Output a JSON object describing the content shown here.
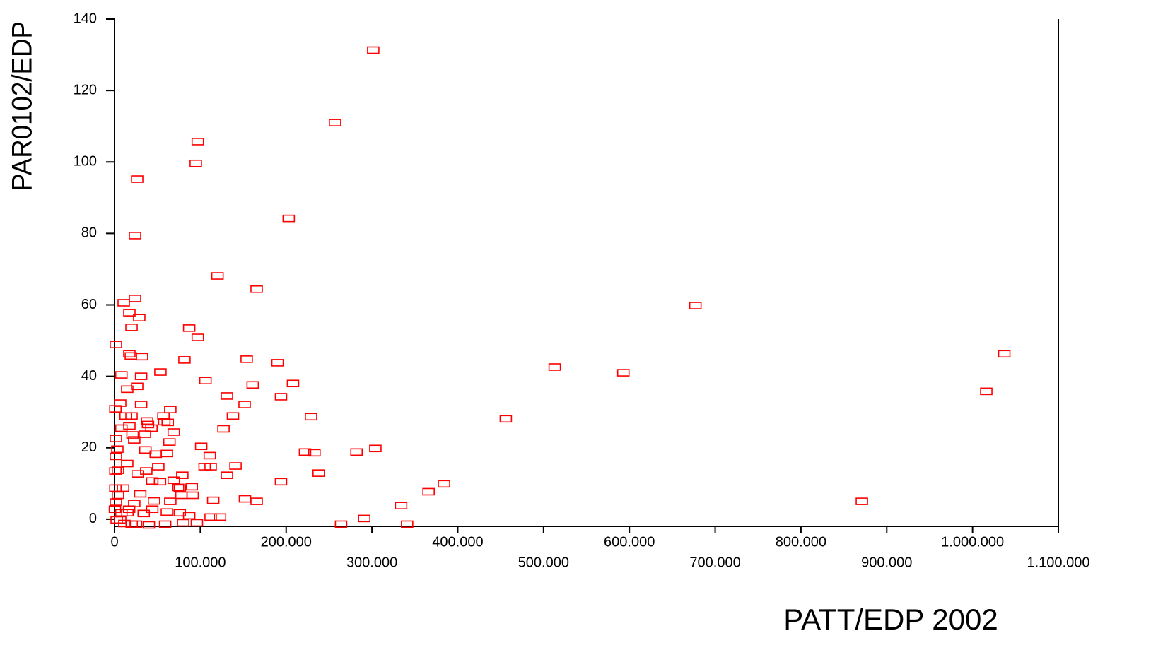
{
  "chart_data": {
    "type": "scatter",
    "x_label": "PATT/EDP 2002",
    "y_label": "PAR0102/EDP",
    "xlim": [
      0,
      1100000
    ],
    "ylim": [
      -2,
      140
    ],
    "xticks": [
      0,
      {
        "value": 100000,
        "label": "100.000"
      },
      {
        "value": 200000,
        "label": "200.000"
      },
      {
        "value": 300000,
        "label": "300.000"
      },
      {
        "value": 400000,
        "label": "400.000"
      },
      {
        "value": 500000,
        "label": "500.000"
      },
      {
        "value": 600000,
        "label": "600.000"
      },
      {
        "value": 700000,
        "label": "700.000"
      },
      {
        "value": 800000,
        "label": "800.000"
      },
      {
        "value": 900000,
        "label": "900.000"
      },
      {
        "value": 1000000,
        "label": "1.000.000"
      },
      {
        "value": 1100000,
        "label": "1.100.000"
      }
    ],
    "yticks": [
      0,
      20,
      40,
      60,
      80,
      100,
      120,
      140
    ],
    "series": [
      {
        "color": "#ff0000",
        "x": [
          301500,
          257000,
          97000,
          94700,
          26400,
          23900,
          203000,
          120000,
          165600,
          677000,
          1037000,
          1016000,
          513000,
          593000,
          456000,
          871000,
          384000,
          366000,
          334000,
          291000,
          264000,
          341000,
          304000,
          282000,
          238000,
          233000,
          222000,
          229000,
          208000,
          194000,
          190000,
          194000,
          161000,
          154000,
          151600,
          165600,
          152000,
          127000,
          138000,
          131000,
          141000,
          131000,
          106000,
          97000,
          87000,
          81500,
          101000,
          111000,
          112000,
          105000,
          115000,
          112000,
          123000,
          96000,
          80000,
          90000,
          87000,
          53500,
          65000,
          58000,
          69000,
          61000,
          53000,
          74000,
          65000,
          59000,
          40000,
          20000,
          1600,
          10700,
          23900,
          17300,
          28800,
          19800,
          17300,
          32000,
          19000,
          31000,
          14800,
          26400,
          31000,
          6600,
          1000,
          17300,
          35400,
          23000,
          36000,
          3300,
          14800,
          4000,
          27000,
          10000,
          4000,
          23000,
          15000,
          2500,
          38000,
          48000,
          44000,
          46000,
          34000,
          25000,
          8000,
          1600,
          1000,
          1000,
          1600,
          1600,
          8000,
          13000,
          8000,
          19800,
          39000,
          51000,
          69000,
          78000,
          91000,
          79000,
          76000,
          61000,
          76000,
          44000,
          30000,
          37000,
          21000,
          43000,
          57000,
          62000,
          64000,
          6600,
          11500,
          17000,
          500
        ],
        "y": [
          131.3,
          111,
          105.7,
          99.6,
          95.2,
          79.4,
          84.2,
          68.1,
          64.4,
          59.8,
          46.3,
          35.8,
          42.6,
          41,
          28.1,
          5,
          9.9,
          7.7,
          3.8,
          0.2,
          -1.4,
          -1.4,
          19.8,
          18.8,
          12.9,
          18.6,
          18.8,
          28.7,
          38,
          34.3,
          43.8,
          10.5,
          37.6,
          44.8,
          32.1,
          5,
          5.7,
          25.3,
          28.9,
          34.5,
          14.9,
          12.3,
          38.8,
          50.9,
          53.5,
          44.6,
          20.4,
          17.8,
          14.7,
          14.7,
          5.3,
          0.6,
          0.6,
          -1,
          -1,
          9.1,
          1,
          41.2,
          30.7,
          27.3,
          24.4,
          18.4,
          10.5,
          8.9,
          5,
          -1.4,
          -1.6,
          -1.4,
          48.9,
          60.6,
          61.8,
          57.8,
          56.4,
          53.7,
          46.3,
          45.5,
          45.7,
          40,
          36.4,
          37.2,
          32.1,
          32.5,
          30.9,
          26.1,
          23.8,
          22.2,
          19.4,
          19.6,
          15.6,
          13.7,
          12.7,
          8.7,
          6.7,
          4.4,
          1.8,
          -0.2,
          27.5,
          18.2,
          10.7,
          5.1,
          1.6,
          -1.4,
          1.8,
          4.8,
          8.7,
          13.5,
          17.6,
          22.6,
          25.5,
          28.9,
          40.4,
          28.9,
          26.5,
          14.7,
          10.9,
          6.7,
          6.7,
          12.3,
          8.7,
          2,
          1.8,
          2.8,
          7.1,
          13.5,
          23.6,
          25.5,
          28.9,
          27.1,
          21.6,
          -0.2,
          -1.2,
          2.8,
          2.8
        ]
      }
    ]
  }
}
